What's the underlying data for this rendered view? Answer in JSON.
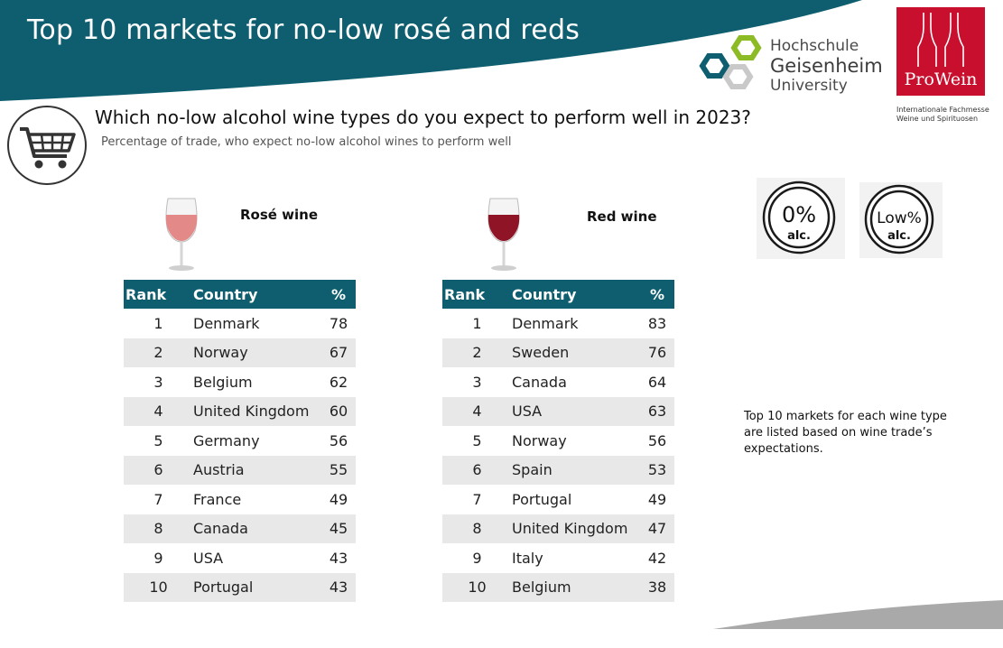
{
  "header": {
    "title": "Top 10 markets for no-low rosé and reds",
    "band_color": "#0e5e6f"
  },
  "logos": {
    "university_line1": "Hochschule",
    "university_line2": "Geisenheim",
    "university_line3": "University",
    "prowein_name": "ProWein",
    "prowein_subtitle_line1": "Internationale Fachmesse",
    "prowein_subtitle_line2": "Weine und Spirituosen",
    "prowein_color": "#c8102e"
  },
  "question": "Which no-low alcohol wine types do you expect to perform well in 2023?",
  "subtitle": "Percentage of trade, who expect no-low alcohol wines to perform well",
  "icons": {
    "cart": "shopping-cart-icon",
    "rose_glass": "rose-wine-glass-icon",
    "red_glass": "red-wine-glass-icon"
  },
  "rose": {
    "label": "Rosé wine",
    "headers": [
      "Rank",
      "Country",
      "%"
    ],
    "rows": [
      {
        "rank": "1",
        "country": "Denmark",
        "pct": "78"
      },
      {
        "rank": "2",
        "country": "Norway",
        "pct": "67"
      },
      {
        "rank": "3",
        "country": "Belgium",
        "pct": "62"
      },
      {
        "rank": "4",
        "country": "United Kingdom",
        "pct": "60"
      },
      {
        "rank": "5",
        "country": "Germany",
        "pct": "56"
      },
      {
        "rank": "6",
        "country": "Austria",
        "pct": "55"
      },
      {
        "rank": "7",
        "country": "France",
        "pct": "49"
      },
      {
        "rank": "8",
        "country": "Canada",
        "pct": "45"
      },
      {
        "rank": "9",
        "country": "USA",
        "pct": "43"
      },
      {
        "rank": "10",
        "country": "Portugal",
        "pct": "43"
      }
    ]
  },
  "red": {
    "label": "Red wine",
    "headers": [
      "Rank",
      "Country",
      "%"
    ],
    "rows": [
      {
        "rank": "1",
        "country": "Denmark",
        "pct": "83"
      },
      {
        "rank": "2",
        "country": "Sweden",
        "pct": "76"
      },
      {
        "rank": "3",
        "country": "Canada",
        "pct": "64"
      },
      {
        "rank": "4",
        "country": "USA",
        "pct": "63"
      },
      {
        "rank": "5",
        "country": "Norway",
        "pct": "56"
      },
      {
        "rank": "6",
        "country": "Spain",
        "pct": "53"
      },
      {
        "rank": "7",
        "country": "Portugal",
        "pct": "49"
      },
      {
        "rank": "8",
        "country": "United Kingdom",
        "pct": "47"
      },
      {
        "rank": "9",
        "country": "Italy",
        "pct": "42"
      },
      {
        "rank": "10",
        "country": "Belgium",
        "pct": "38"
      }
    ]
  },
  "badges": {
    "zero_line1": "0%",
    "zero_line2": "alc.",
    "low_line1": "Low%",
    "low_line2": "alc."
  },
  "note": "Top 10 markets for each wine type are listed based on wine trade’s expectations."
}
